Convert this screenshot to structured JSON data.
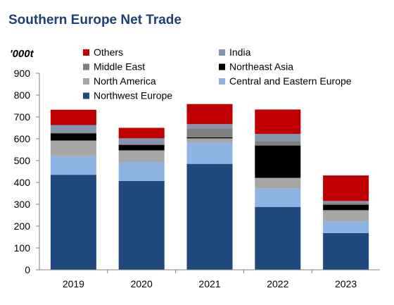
{
  "title": "Southern Europe Net Trade",
  "chart_data": {
    "type": "bar",
    "stacked": true,
    "title": "Southern Europe Net Trade",
    "ylabel": "'000t",
    "xlabel": "",
    "ylim": [
      0,
      900
    ],
    "yticks": [
      0,
      100,
      200,
      300,
      400,
      500,
      600,
      700,
      800,
      900
    ],
    "grid": false,
    "legend_position": "top",
    "categories": [
      "2019",
      "2020",
      "2021",
      "2022",
      "2023"
    ],
    "series": [
      {
        "name": "Northwest Europe",
        "color": "#1f497d",
        "values": [
          435,
          407,
          485,
          288,
          168
        ]
      },
      {
        "name": "Central and Eastern Europe",
        "color": "#8db4e2",
        "values": [
          85,
          85,
          97,
          85,
          55
        ]
      },
      {
        "name": "North America",
        "color": "#a6a6a6",
        "values": [
          72,
          55,
          20,
          48,
          50
        ]
      },
      {
        "name": "Northeast Asia",
        "color": "#000000",
        "values": [
          33,
          25,
          5,
          148,
          25
        ]
      },
      {
        "name": "Middle East",
        "color": "#7f7f7f",
        "values": [
          5,
          5,
          40,
          20,
          7
        ]
      },
      {
        "name": "India",
        "color": "#8497b0",
        "values": [
          33,
          25,
          20,
          33,
          10
        ]
      },
      {
        "name": "Others",
        "color": "#c00000",
        "values": [
          70,
          48,
          92,
          112,
          117
        ]
      }
    ],
    "legend": [
      {
        "name": "Others",
        "color": "#c00000"
      },
      {
        "name": "India",
        "color": "#8497b0"
      },
      {
        "name": "Middle East",
        "color": "#7f7f7f"
      },
      {
        "name": "Northeast Asia",
        "color": "#000000"
      },
      {
        "name": "North America",
        "color": "#a6a6a6"
      },
      {
        "name": "Central and Eastern Europe",
        "color": "#8db4e2"
      },
      {
        "name": "Northwest Europe",
        "color": "#1f497d"
      }
    ]
  }
}
